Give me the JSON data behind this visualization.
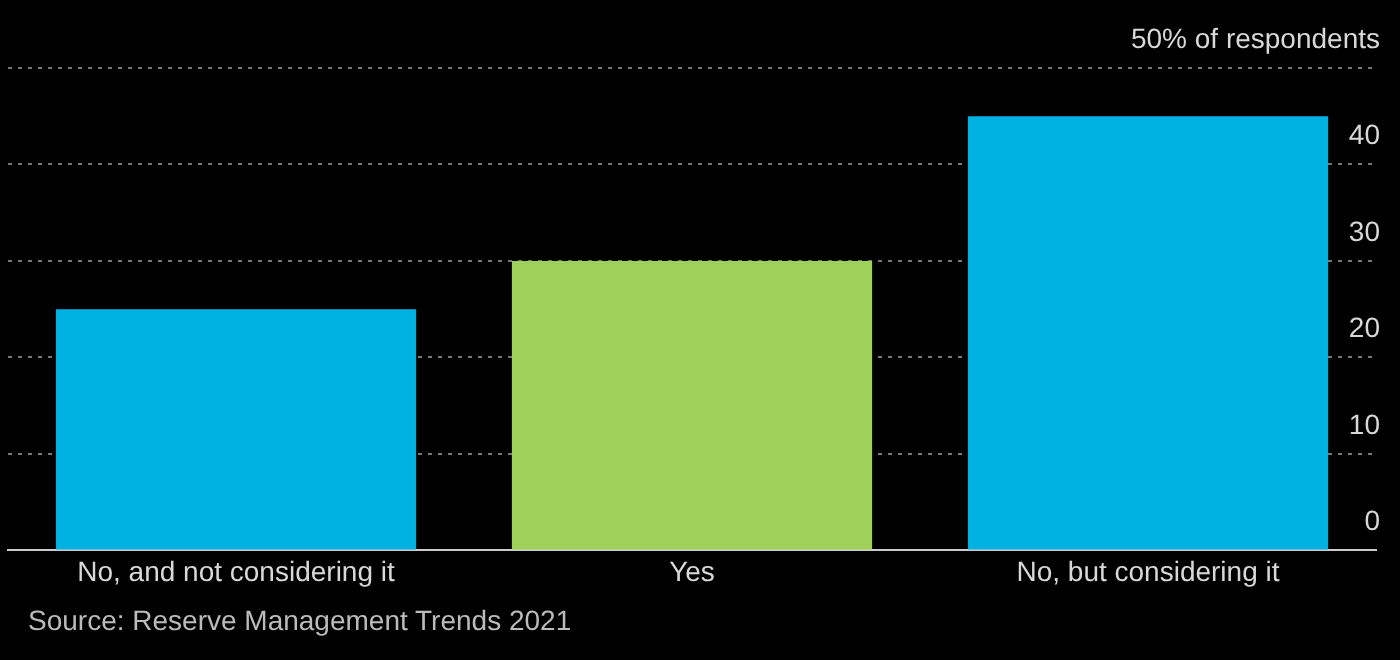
{
  "chart_data": {
    "type": "bar",
    "categories": [
      "No, and not considering it",
      "Yes",
      "No, but considering it"
    ],
    "values": [
      25,
      30,
      45
    ],
    "colors": [
      "#00b2e2",
      "#9fd05a",
      "#00b2e2"
    ],
    "ylim": [
      0,
      50
    ],
    "yticks": [
      0,
      10,
      20,
      30,
      40,
      {
        "value": 50,
        "label": "50% of respondents"
      }
    ],
    "grid": "y",
    "legend": false,
    "annotations": [
      "Source: Reserve Management Trends 2021"
    ]
  }
}
